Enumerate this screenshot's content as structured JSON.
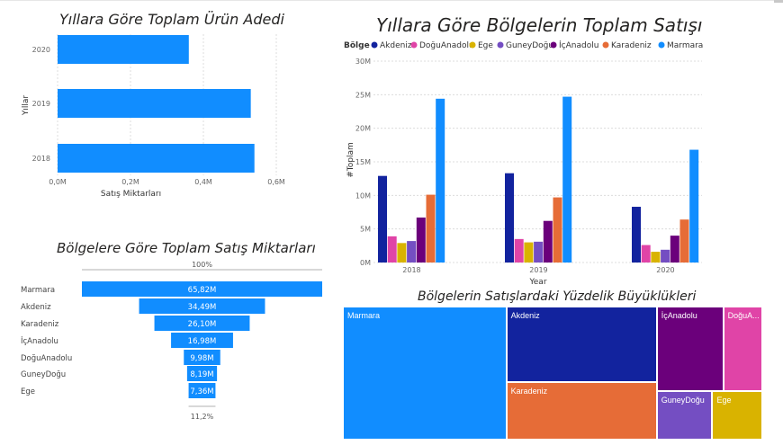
{
  "charts": {
    "units_by_year": {
      "title": "Yıllara Göre Toplam Ürün Adedi"
    },
    "sales_by_region_year": {
      "title": "Yıllara Göre Bölgelerin Toplam Satışı"
    },
    "funnel": {
      "title": "Bölgelere Göre Toplam Satış Miktarları"
    },
    "treemap": {
      "title": "Bölgelerin Satışlardaki Yüzdelik Büyüklükleri"
    }
  },
  "colors": {
    "Akdeniz": "#12239E",
    "DoğuAnadolu": "#E044A7",
    "Ege": "#D9B300",
    "GuneyDoğu": "#744EC2",
    "İçAnadolu": "#6B007B",
    "Karadeniz": "#E66C37",
    "Marmara": "#118DFF"
  },
  "chart_data": [
    {
      "id": "units_by_year",
      "type": "bar",
      "orientation": "horizontal",
      "title": "Yıllara Göre Toplam Ürün Adedi",
      "categories": [
        "2020",
        "2019",
        "2018"
      ],
      "values": [
        0.36,
        0.53,
        0.54
      ],
      "xlabel": "Satış Miktarları",
      "ylabel": "Yıllar",
      "xlim": [
        0,
        0.6
      ],
      "xticks": [
        "0,0M",
        "0,2M",
        "0,4M",
        "0,6M"
      ],
      "color": "#118DFF",
      "grid": true
    },
    {
      "id": "sales_by_region_year",
      "type": "bar",
      "title": "Yıllara Göre Bölgelerin Toplam Satışı",
      "categories": [
        "2018",
        "2019",
        "2020"
      ],
      "series": [
        {
          "name": "Akdeniz",
          "values": [
            12.9,
            13.3,
            8.3
          ]
        },
        {
          "name": "DoğuAnadolu",
          "values": [
            3.9,
            3.5,
            2.6
          ]
        },
        {
          "name": "Ege",
          "values": [
            2.9,
            3.0,
            1.6
          ]
        },
        {
          "name": "GuneyDoğu",
          "values": [
            3.2,
            3.1,
            1.9
          ]
        },
        {
          "name": "İçAnadolu",
          "values": [
            6.7,
            6.2,
            4.0
          ]
        },
        {
          "name": "Karadeniz",
          "values": [
            10.1,
            9.7,
            6.4
          ]
        },
        {
          "name": "Marmara",
          "values": [
            24.4,
            24.7,
            16.8
          ]
        }
      ],
      "legend_title": "Bölge",
      "legend_position": "top-left",
      "xlabel": "Year",
      "ylabel": "#Toplam",
      "ylim": [
        0,
        30
      ],
      "yticks": [
        "0M",
        "5M",
        "10M",
        "15M",
        "20M",
        "25M",
        "30M"
      ],
      "grid": true
    },
    {
      "id": "funnel",
      "type": "bar",
      "subtype": "funnel",
      "title": "Bölgelere Göre Toplam Satış Miktarları",
      "categories": [
        "Marmara",
        "Akdeniz",
        "Karadeniz",
        "İçAnadolu",
        "DoğuAnadolu",
        "GuneyDoğu",
        "Ege"
      ],
      "values": [
        65.82,
        34.49,
        26.1,
        16.98,
        9.98,
        8.19,
        7.36
      ],
      "value_labels": [
        "65,82M",
        "34,49M",
        "26,10M",
        "16,98M",
        "9,98M",
        "8,19M",
        "7,36M"
      ],
      "top_percent": "100%",
      "bottom_percent": "11,2%",
      "color": "#118DFF"
    },
    {
      "id": "treemap",
      "type": "treemap",
      "title": "Bölgelerin Satışlardaki Yüzdelik Büyüklükleri",
      "categories": [
        "Marmara",
        "Akdeniz",
        "Karadeniz",
        "İçAnadolu",
        "DoğuAnadolu",
        "GuneyDoğu",
        "Ege"
      ],
      "values": [
        65.82,
        34.49,
        26.1,
        16.98,
        9.98,
        8.19,
        7.36
      ],
      "labels": [
        "Marmara",
        "Akdeniz",
        "Karadeniz",
        "İçAnadolu",
        "DoğuA...",
        "GuneyDoğu",
        "Ege"
      ]
    }
  ]
}
